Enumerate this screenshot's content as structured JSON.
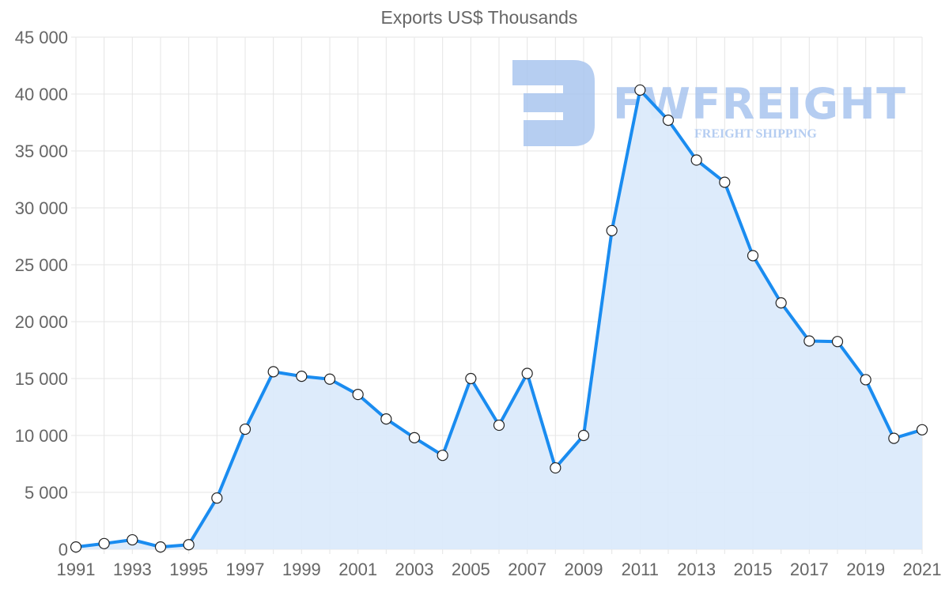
{
  "chart_data": {
    "type": "line",
    "title": "Exports US$ Thousands",
    "xlabel": "",
    "ylabel": "",
    "x": [
      1991,
      1992,
      1993,
      1994,
      1995,
      1996,
      1997,
      1998,
      1999,
      2000,
      2001,
      2002,
      2003,
      2004,
      2005,
      2006,
      2007,
      2008,
      2009,
      2010,
      2011,
      2012,
      2013,
      2014,
      2015,
      2016,
      2017,
      2018,
      2019,
      2020,
      2021
    ],
    "series": [
      {
        "name": "Exports US$ Thousands",
        "values": [
          200,
          500,
          830,
          200,
          400,
          4500,
          10550,
          15600,
          15200,
          14950,
          13600,
          11450,
          9800,
          8250,
          15000,
          10900,
          15450,
          7150,
          10000,
          28000,
          40350,
          37700,
          34200,
          32250,
          25800,
          21650,
          18300,
          18250,
          14900,
          9750,
          10500
        ],
        "color": "#1a8cf0",
        "fill": "#dbeafb"
      }
    ],
    "xticks": [
      "1991",
      "1993",
      "1995",
      "1997",
      "1999",
      "2001",
      "2003",
      "2005",
      "2007",
      "2009",
      "2011",
      "2013",
      "2015",
      "2017",
      "2019",
      "2021"
    ],
    "yticks": [
      "0",
      "5 000",
      "10 000",
      "15 000",
      "20 000",
      "25 000",
      "30 000",
      "35 000",
      "40 000",
      "45 000"
    ],
    "ylim": [
      0,
      45000
    ],
    "xlim": [
      1991,
      2021
    ],
    "grid": true,
    "legend": "none"
  },
  "watermark": {
    "brand": "FWFREIGHT",
    "tagline": "FREIGHT SHIPPING"
  }
}
